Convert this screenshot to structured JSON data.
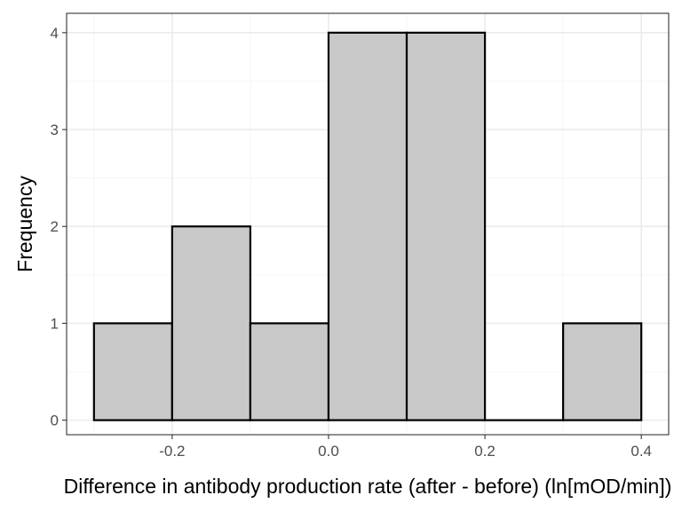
{
  "chart_data": {
    "type": "bar",
    "subtype": "histogram",
    "bins": [
      {
        "x0": -0.3,
        "x1": -0.2,
        "count": 1
      },
      {
        "x0": -0.2,
        "x1": -0.1,
        "count": 2
      },
      {
        "x0": -0.1,
        "x1": 0.0,
        "count": 1
      },
      {
        "x0": 0.0,
        "x1": 0.1,
        "count": 4
      },
      {
        "x0": 0.1,
        "x1": 0.2,
        "count": 4
      },
      {
        "x0": 0.2,
        "x1": 0.3,
        "count": 0
      },
      {
        "x0": 0.3,
        "x1": 0.4,
        "count": 1
      }
    ],
    "xlabel": "Difference in antibody production rate (after - before) (ln[mOD/min])",
    "ylabel": "Frequency",
    "xlim": [
      -0.335,
      0.435
    ],
    "ylim": [
      -0.15,
      4.2
    ],
    "x_ticks": [
      {
        "value": -0.2,
        "label": "-0.2"
      },
      {
        "value": 0.0,
        "label": "0.0"
      },
      {
        "value": 0.2,
        "label": "0.2"
      },
      {
        "value": 0.4,
        "label": "0.4"
      }
    ],
    "y_ticks": [
      {
        "value": 0,
        "label": "0"
      },
      {
        "value": 1,
        "label": "1"
      },
      {
        "value": 2,
        "label": "2"
      },
      {
        "value": 3,
        "label": "3"
      },
      {
        "value": 4,
        "label": "4"
      }
    ],
    "grid": true,
    "theme": "bw",
    "colors": {
      "bar_fill": "#c8c8c8",
      "bar_stroke": "#000000",
      "grid_major": "#ebebeb",
      "grid_minor": "#f5f5f5",
      "panel_border": "#333333"
    }
  }
}
